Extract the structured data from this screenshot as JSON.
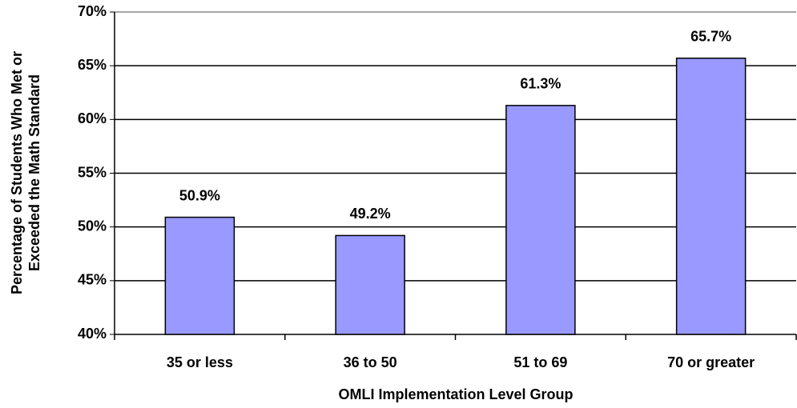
{
  "chart_data": {
    "type": "bar",
    "xlabel": "OMLI Implementation Level Group",
    "ylabel": [
      "Percentage of Students Who Met or",
      "Exceeded the Math Standard"
    ],
    "categories": [
      "35 or less",
      "36 to 50",
      "51 to 69",
      "70 or greater"
    ],
    "values": [
      50.9,
      49.2,
      61.3,
      65.7
    ],
    "value_labels": [
      "50.9%",
      "49.2%",
      "61.3%",
      "65.7%"
    ],
    "color": "#9999ff",
    "ylim": [
      40,
      70
    ],
    "yticks": [
      {
        "value": 40,
        "label": "40%"
      },
      {
        "value": 45,
        "label": "45%"
      },
      {
        "value": 50,
        "label": "50%"
      },
      {
        "value": 55,
        "label": "55%"
      },
      {
        "value": 60,
        "label": "60%"
      },
      {
        "value": 65,
        "label": "65%"
      },
      {
        "value": 70,
        "label": "70%"
      }
    ],
    "grid": true
  }
}
